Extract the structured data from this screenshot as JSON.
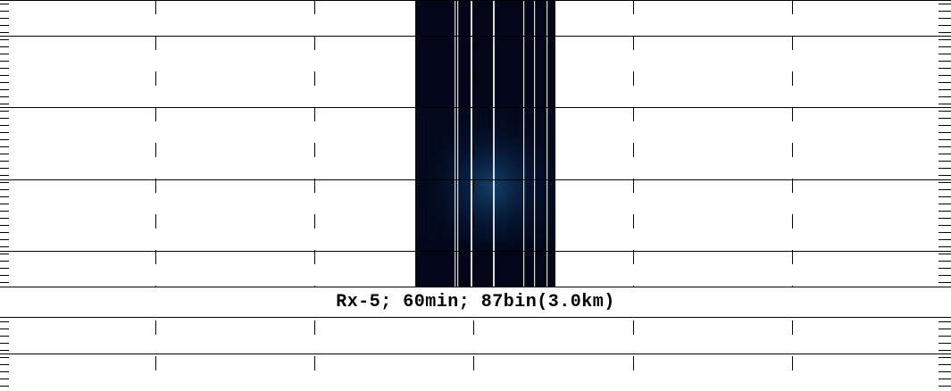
{
  "panel_title": "Rx-5; 60min; 87bin(3.0km)",
  "colors": {
    "background": "#ffffff",
    "grid": "#000000",
    "data_dark": "#020618",
    "data_mid": "#0a2a55",
    "data_bright": "#1f6fb0",
    "gap_line": "#ffffff"
  },
  "chart_data": {
    "type": "heatmap",
    "title": "Rx-5; 60min; 87bin(3.0km)",
    "xlabel": "",
    "ylabel": "",
    "colormap": "black-to-blue",
    "grid": true,
    "x_gridlines_style": "dashed",
    "y_gridlines_style": "solid",
    "data_gaps_white_lines": 7,
    "description_of_values": "low intensity everywhere except a faint blue band near the middle rows of the data block"
  }
}
